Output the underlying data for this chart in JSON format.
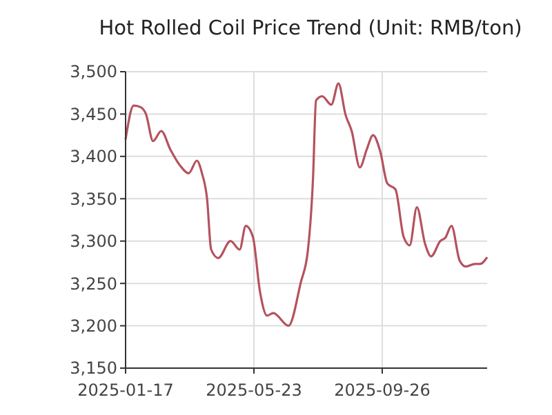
{
  "chart_data": {
    "type": "line",
    "title": "Hot Rolled Coil Price Trend (Unit: RMB/ton)",
    "x": [
      "2025-01-17",
      "2025-01-25",
      "2025-02-01",
      "2025-02-06",
      "2025-02-13",
      "2025-02-21",
      "2025-03-02",
      "2025-03-11",
      "2025-03-20",
      "2025-03-28",
      "2025-04-02",
      "2025-04-07",
      "2025-04-11",
      "2025-04-18",
      "2025-04-30",
      "2025-05-09",
      "2025-05-15",
      "2025-05-22",
      "2025-05-29",
      "2025-06-05",
      "2025-06-11",
      "2025-06-26",
      "2025-07-08",
      "2025-07-15",
      "2025-07-20",
      "2025-07-23",
      "2025-07-29",
      "2025-08-07",
      "2025-08-14",
      "2025-08-21",
      "2025-08-27",
      "2025-09-04",
      "2025-09-11",
      "2025-09-17",
      "2025-09-24",
      "2025-10-01",
      "2025-10-09",
      "2025-10-17",
      "2025-10-23",
      "2025-10-30",
      "2025-11-07",
      "2025-11-13",
      "2025-11-22",
      "2025-11-27",
      "2025-12-03",
      "2025-12-11",
      "2025-12-17",
      "2025-12-26",
      "2025-12-31",
      "2026-01-07"
    ],
    "series": [
      {
        "color": "#b5525e",
        "values": [
          3420,
          3460,
          3458,
          3450,
          3418,
          3430,
          3408,
          3390,
          3380,
          3395,
          3380,
          3350,
          3290,
          3280,
          3300,
          3290,
          3318,
          3305,
          3240,
          3212,
          3215,
          3200,
          3251,
          3289,
          3373,
          3466,
          3471,
          3461,
          3486,
          3449,
          3430,
          3387,
          3409,
          3425,
          3406,
          3368,
          3361,
          3305,
          3295,
          3340,
          3297,
          3282,
          3300,
          3304,
          3318,
          3277,
          3270,
          3273,
          3273,
          3281
        ]
      }
    ],
    "xlim": [
      "2025-01-17",
      "2026-01-07"
    ],
    "xticks": [
      "2025-01-17",
      "2025-05-23",
      "2025-09-26"
    ],
    "ylim": [
      3150,
      3500
    ],
    "yticks": [
      {
        "value": 3150,
        "label": "3,150"
      },
      {
        "value": 3200,
        "label": "3,200"
      },
      {
        "value": 3250,
        "label": "3,250"
      },
      {
        "value": 3300,
        "label": "3,300"
      },
      {
        "value": 3350,
        "label": "3,350"
      },
      {
        "value": 3400,
        "label": "3,400"
      },
      {
        "value": 3450,
        "label": "3,450"
      },
      {
        "value": 3500,
        "label": "3,500"
      }
    ],
    "grid": true,
    "line_style": "solid",
    "marker": "none"
  }
}
